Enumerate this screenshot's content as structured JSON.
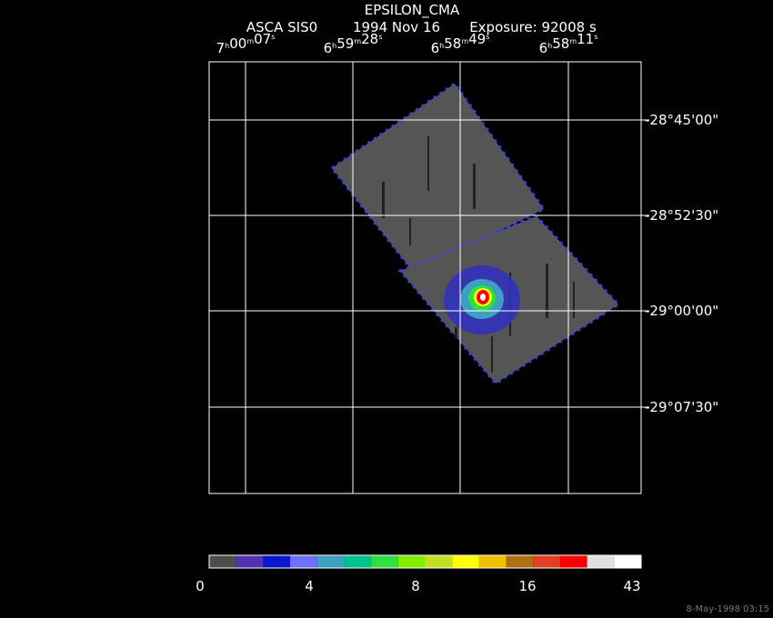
{
  "header": {
    "title": "EPSILON_CMA",
    "instrument": "ASCA SIS0",
    "date": "1994 Nov 16",
    "exposure": "Exposure: 92008 s"
  },
  "ra_units": [
    "h",
    "m",
    "s"
  ],
  "ra_labels": [
    [
      "7",
      "00",
      "07"
    ],
    [
      "6",
      "59",
      "28"
    ],
    [
      "6",
      "58",
      "49"
    ],
    [
      "6",
      "58",
      "11"
    ]
  ],
  "dec_labels": [
    "-28°45'00\"",
    "-28°52'30\"",
    "-29°00'00\"",
    "-29°07'30\""
  ],
  "colorbar": {
    "colors": [
      "#4d4d4d",
      "#5232b0",
      "#0818d0",
      "#7070ff",
      "#3ca0c0",
      "#00c090",
      "#30e040",
      "#80f000",
      "#c0e020",
      "#ffff00",
      "#f0c000",
      "#b07010",
      "#e04020",
      "#ff0000",
      "#e0e0e0",
      "#ffffff"
    ],
    "labels": [
      "0",
      "4",
      "8",
      "16",
      "43"
    ]
  },
  "timestamp": "8-May-1998 03:15"
}
